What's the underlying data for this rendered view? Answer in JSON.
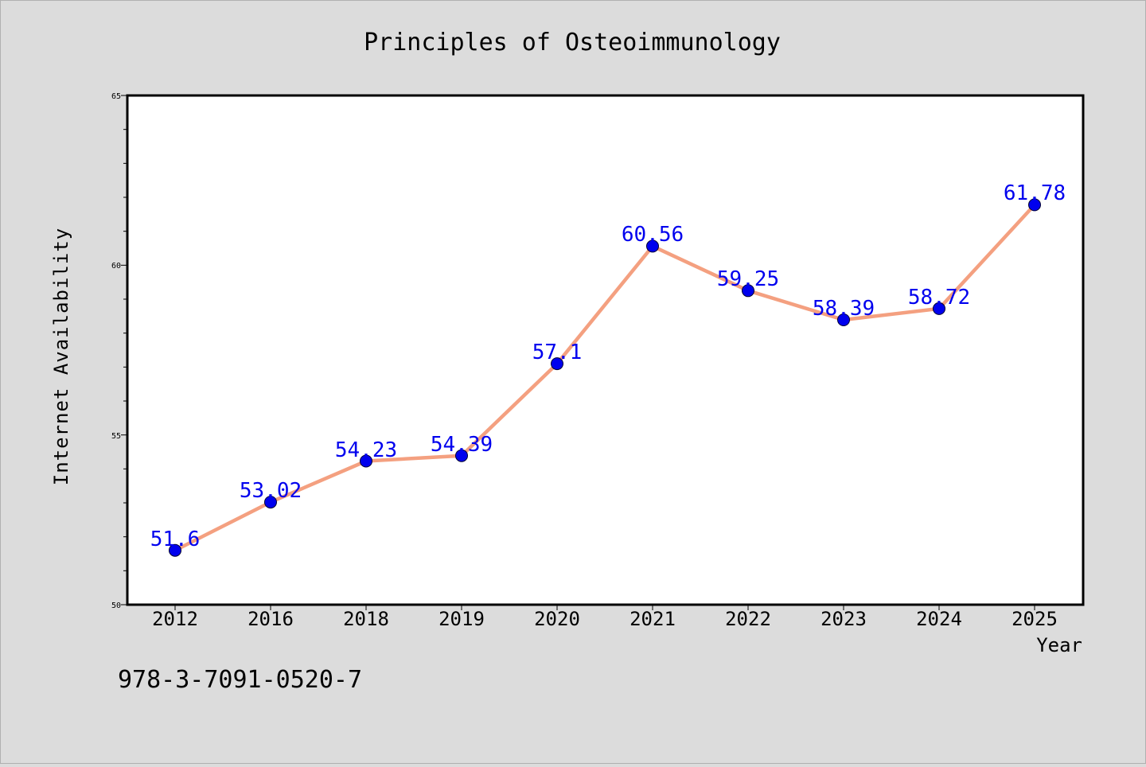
{
  "chart_data": {
    "type": "line",
    "title": "Principles of Osteoimmunology",
    "xlabel": "Year",
    "ylabel": "Internet Availability",
    "categories": [
      "2012",
      "2016",
      "2018",
      "2019",
      "2020",
      "2021",
      "2022",
      "2023",
      "2024",
      "2025"
    ],
    "series": [
      {
        "values": [
          51.6,
          53.02,
          54.23,
          54.39,
          57.1,
          60.56,
          59.25,
          58.39,
          58.72,
          61.78
        ],
        "labels": [
          "51.6",
          "53.02",
          "54.23",
          "54.39",
          "57.1",
          "60.56",
          "59.25",
          "58.39",
          "58.72",
          "61.78"
        ],
        "line_color": "#f4a080",
        "marker_color": "#0000ee",
        "label_color": "#0000ee"
      }
    ],
    "ylim": [
      50,
      65
    ],
    "y_ticks": [
      "50",
      "55",
      "60",
      "65"
    ],
    "grid": false,
    "legend": "none"
  },
  "footer": {
    "isbn": "978-3-7091-0520-7"
  },
  "colors": {
    "background": "#dcdcdc",
    "plot_background": "#ffffff",
    "axis": "#000000"
  }
}
